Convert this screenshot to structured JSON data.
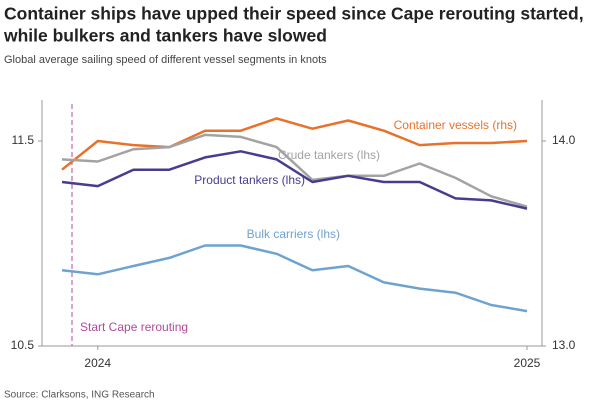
{
  "chart_data": {
    "type": "line",
    "title": [
      "Container ships have upped their speed since Cape rerouting started,",
      "while bulkers and tankers have slowed"
    ],
    "subtitle": "Global average sailing speed of different vessel segments in knots",
    "source": "Source: Clarksons, ING Research",
    "annotation": "Start Cape rerouting",
    "categories": [
      null,
      "2024",
      null,
      null,
      null,
      null,
      null,
      null,
      null,
      null,
      null,
      null,
      null,
      "2025"
    ],
    "ylim": [
      10.5,
      11.7
    ],
    "yticks": [
      10.5,
      11.5
    ],
    "y2lim": [
      13.0,
      14.2
    ],
    "y2ticks": [
      {
        "value": 13.0,
        "label": "13.0"
      },
      {
        "value": 14.0,
        "label": "14.0"
      }
    ],
    "grid": false,
    "series": [
      {
        "name": "Container vessels (rhs)",
        "color": "#e8722c",
        "axis": "y2",
        "values": [
          13.86,
          14.0,
          13.98,
          13.97,
          14.05,
          14.05,
          14.11,
          14.06,
          14.1,
          14.05,
          13.98,
          13.99,
          13.99,
          14.0
        ]
      },
      {
        "name": "Crude tankers (lhs)",
        "color": "#a3a3a3",
        "values": [
          11.41,
          11.4,
          11.46,
          11.47,
          11.53,
          11.52,
          11.47,
          11.31,
          11.33,
          11.33,
          11.39,
          11.32,
          11.23,
          11.18
        ]
      },
      {
        "name": "Product tankers (lhs)",
        "color": "#4b3b8f",
        "values": [
          11.3,
          11.28,
          11.36,
          11.36,
          11.42,
          11.45,
          11.41,
          11.3,
          11.33,
          11.3,
          11.3,
          11.22,
          11.21,
          11.17
        ]
      },
      {
        "name": "Bulk carriers (lhs)",
        "color": "#6fa3cf",
        "values": [
          10.87,
          10.85,
          10.89,
          10.93,
          10.99,
          10.99,
          10.95,
          10.87,
          10.89,
          10.81,
          10.78,
          10.76,
          10.7,
          10.67
        ]
      }
    ]
  }
}
